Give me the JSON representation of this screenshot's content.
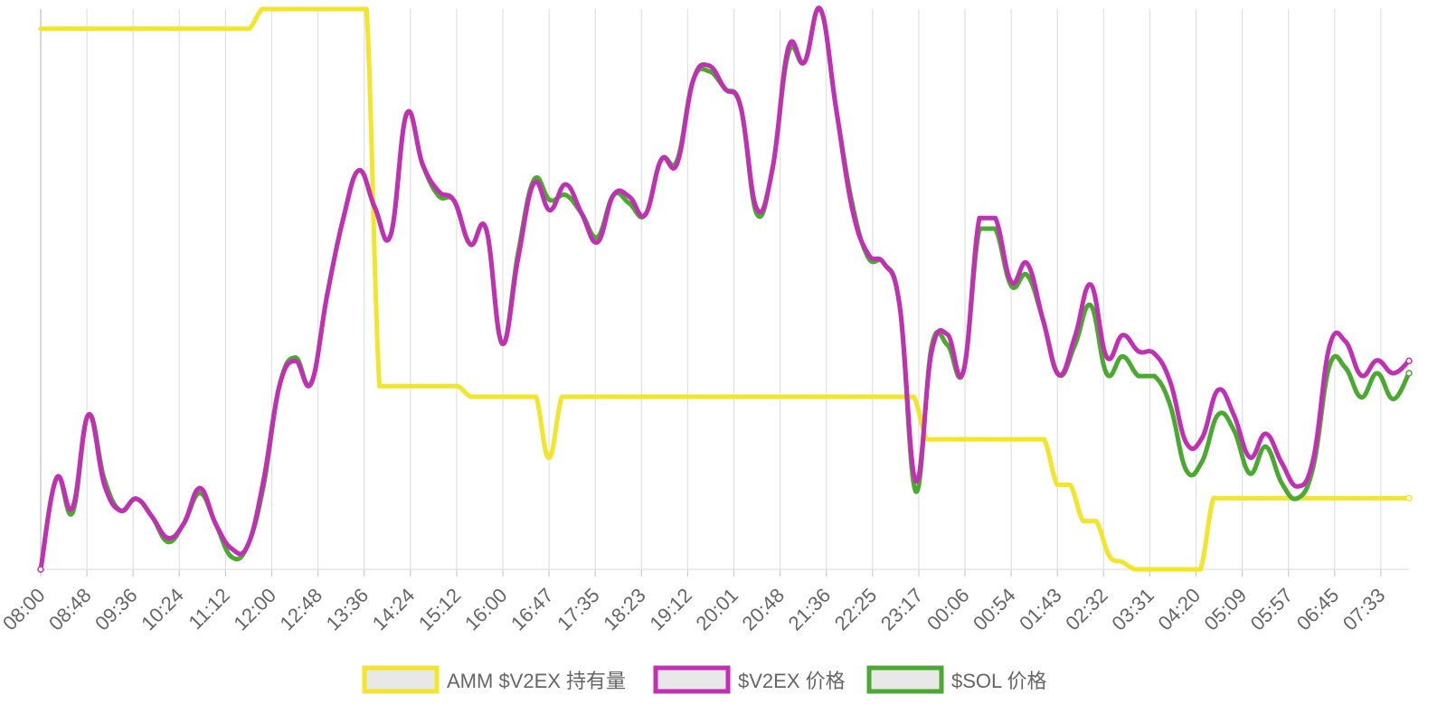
{
  "chart_data": {
    "type": "line",
    "title": "",
    "xlabel": "",
    "ylabel": "",
    "grid": true,
    "legend_position": "bottom",
    "x_tick_labels": [
      "08:00",
      "08:48",
      "09:36",
      "10:24",
      "11:12",
      "12:00",
      "12:48",
      "13:36",
      "14:24",
      "15:12",
      "16:00",
      "16:47",
      "17:35",
      "18:23",
      "19:12",
      "20:01",
      "20:48",
      "21:36",
      "22:25",
      "23:17",
      "00:06",
      "00:54",
      "01:43",
      "02:32",
      "03:31",
      "04:20",
      "05:09",
      "05:57",
      "06:45",
      "07:33"
    ],
    "series": [
      {
        "name": "AMM $V2EX 持有量",
        "color": "#f2e52a",
        "values": [
          0.965,
          0.965,
          0.965,
          0.965,
          0.965,
          0.965,
          0.965,
          0.965,
          0.965,
          0.965,
          0.965,
          0.965,
          0.965,
          0.965,
          0.965,
          0.965,
          0.965,
          1.0,
          1.0,
          1.0,
          1.0,
          1.0,
          1.0,
          1.0,
          1.0,
          1.0,
          0.327,
          0.327,
          0.327,
          0.327,
          0.327,
          0.327,
          0.327,
          0.308,
          0.308,
          0.308,
          0.308,
          0.308,
          0.308,
          0.199,
          0.308,
          0.308,
          0.308,
          0.308,
          0.308,
          0.308,
          0.308,
          0.308,
          0.308,
          0.308,
          0.308,
          0.308,
          0.308,
          0.308,
          0.308,
          0.308,
          0.308,
          0.308,
          0.308,
          0.308,
          0.308,
          0.308,
          0.308,
          0.308,
          0.308,
          0.308,
          0.308,
          0.308,
          0.232,
          0.232,
          0.232,
          0.232,
          0.232,
          0.232,
          0.232,
          0.232,
          0.232,
          0.232,
          0.151,
          0.151,
          0.086,
          0.086,
          0.024,
          0.013,
          0.0,
          0.0,
          0.0,
          0.0,
          0.0,
          0.0,
          0.127,
          0.127,
          0.127,
          0.127,
          0.127,
          0.127,
          0.127,
          0.127,
          0.127,
          0.127,
          0.127,
          0.127,
          0.127,
          0.127,
          0.127,
          0.127
        ]
      },
      {
        "name": "$V2EX 价格",
        "color": "#c22fb4",
        "values": [
          0.0,
          0.163,
          0.11,
          0.276,
          0.151,
          0.105,
          0.126,
          0.094,
          0.056,
          0.082,
          0.145,
          0.081,
          0.037,
          0.042,
          0.158,
          0.327,
          0.372,
          0.332,
          0.489,
          0.624,
          0.712,
          0.646,
          0.597,
          0.813,
          0.723,
          0.675,
          0.657,
          0.58,
          0.607,
          0.403,
          0.554,
          0.689,
          0.641,
          0.687,
          0.635,
          0.584,
          0.668,
          0.665,
          0.633,
          0.731,
          0.724,
          0.872,
          0.899,
          0.858,
          0.825,
          0.644,
          0.716,
          0.932,
          0.905,
          1.0,
          0.821,
          0.644,
          0.563,
          0.546,
          0.468,
          0.158,
          0.389,
          0.419,
          0.354,
          0.627,
          0.627,
          0.513,
          0.546,
          0.445,
          0.347,
          0.415,
          0.508,
          0.379,
          0.418,
          0.389,
          0.385,
          0.334,
          0.226,
          0.235,
          0.32,
          0.275,
          0.2,
          0.242,
          0.19,
          0.148,
          0.199,
          0.398,
          0.407,
          0.346,
          0.373,
          0.35,
          0.372
        ]
      },
      {
        "name": "$SOL 价格",
        "color": "#4aa92f",
        "values": [
          0.0,
          0.163,
          0.101,
          0.276,
          0.161,
          0.105,
          0.126,
          0.094,
          0.049,
          0.082,
          0.136,
          0.081,
          0.022,
          0.042,
          0.148,
          0.327,
          0.378,
          0.332,
          0.489,
          0.624,
          0.712,
          0.646,
          0.597,
          0.813,
          0.723,
          0.667,
          0.657,
          0.58,
          0.607,
          0.403,
          0.564,
          0.695,
          0.659,
          0.668,
          0.635,
          0.593,
          0.668,
          0.653,
          0.633,
          0.731,
          0.73,
          0.872,
          0.889,
          0.858,
          0.825,
          0.635,
          0.716,
          0.922,
          0.905,
          1.0,
          0.821,
          0.654,
          0.557,
          0.546,
          0.468,
          0.139,
          0.398,
          0.4,
          0.354,
          0.608,
          0.608,
          0.506,
          0.525,
          0.445,
          0.347,
          0.4,
          0.471,
          0.349,
          0.38,
          0.345,
          0.345,
          0.292,
          0.177,
          0.193,
          0.276,
          0.248,
          0.171,
          0.219,
          0.154,
          0.127,
          0.185,
          0.363,
          0.36,
          0.307,
          0.35,
          0.304,
          0.35
        ]
      }
    ]
  }
}
